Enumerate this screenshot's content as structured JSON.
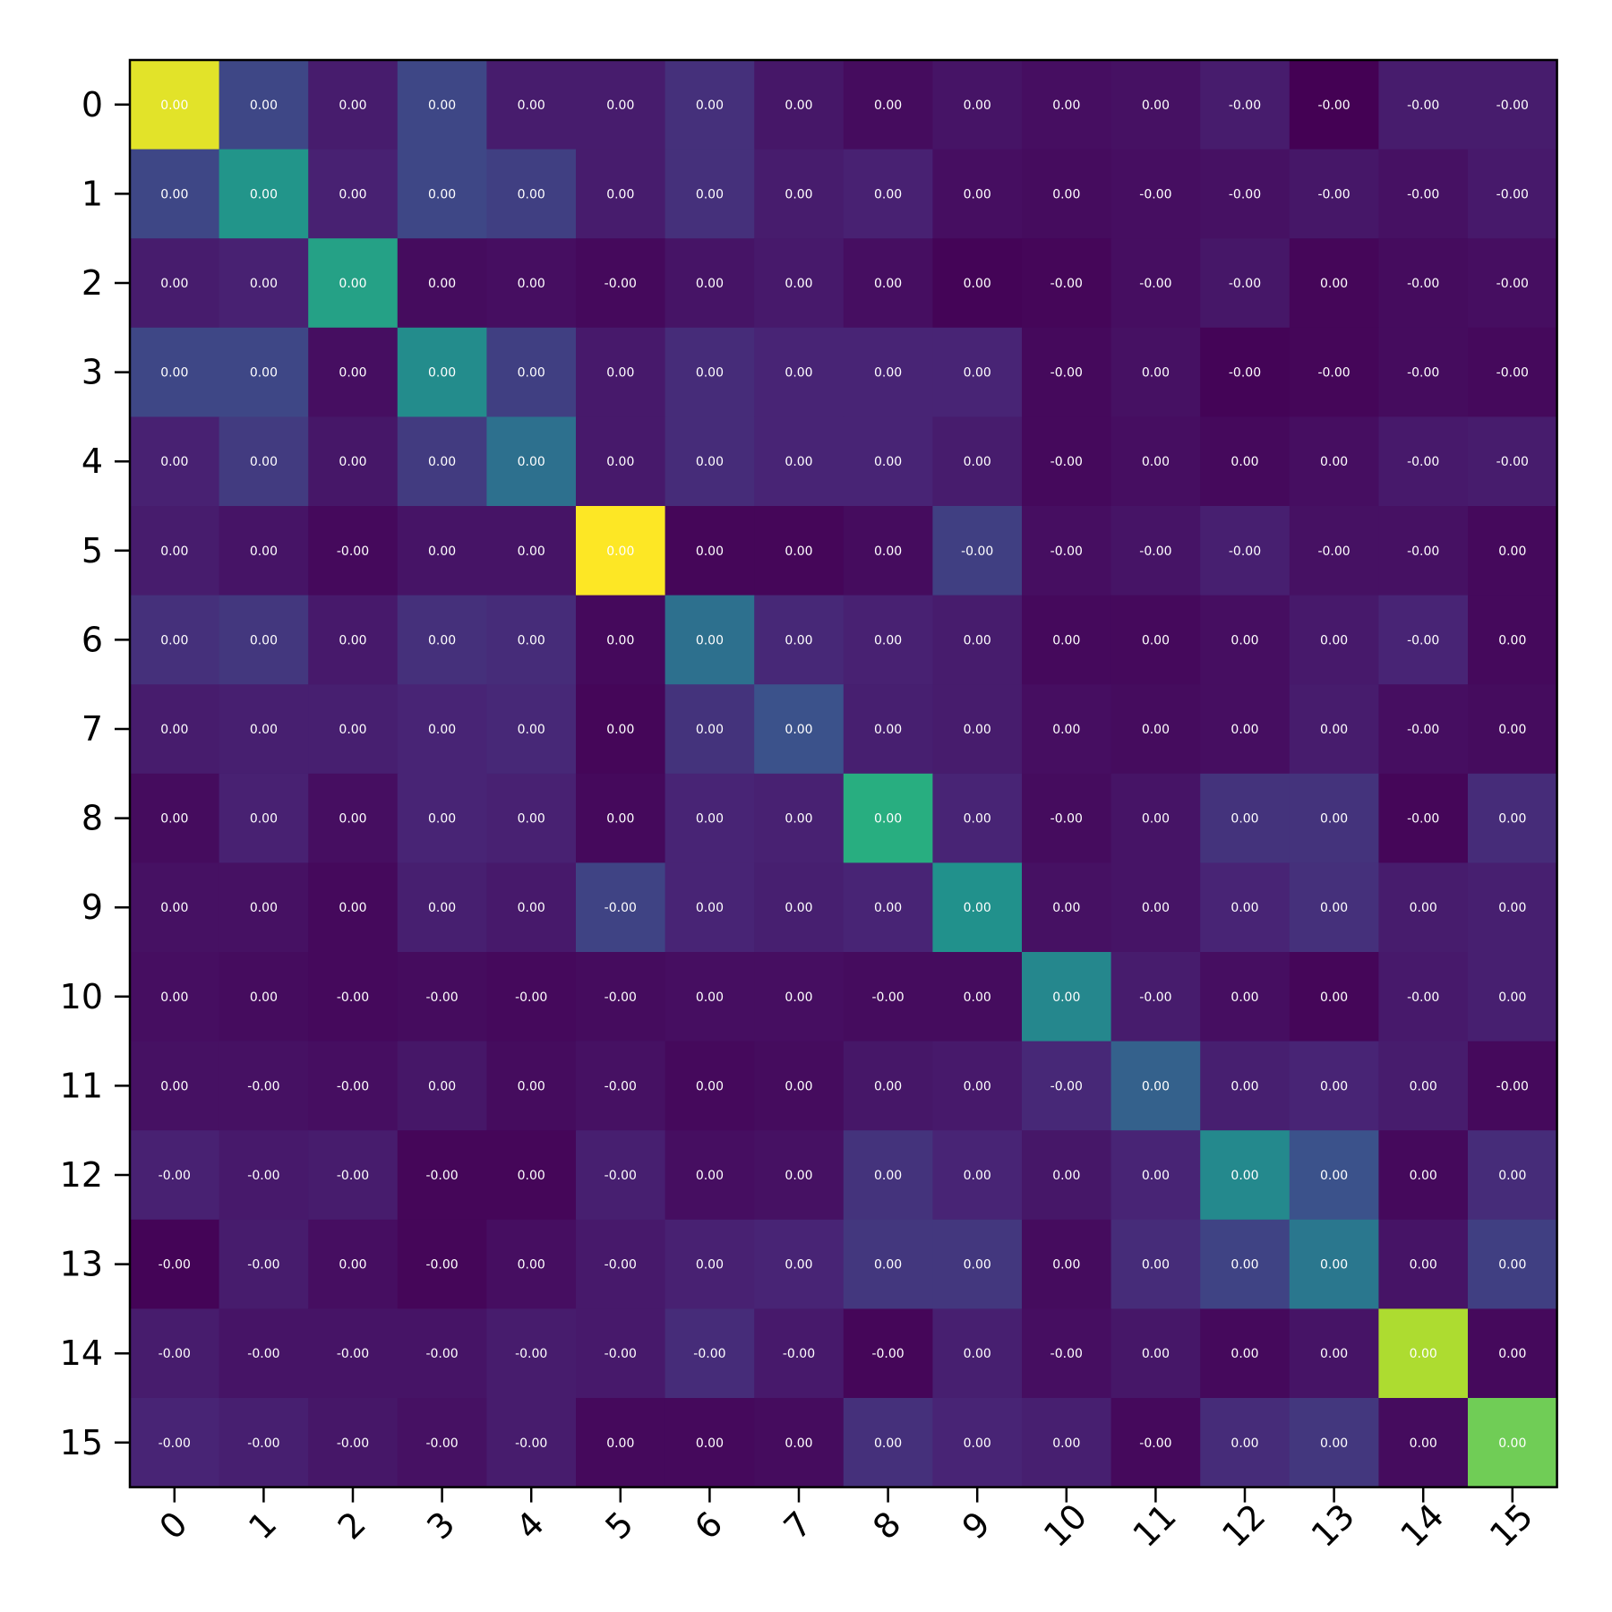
{
  "chart_data": {
    "type": "heatmap",
    "title": "",
    "xlabel": "",
    "ylabel": "",
    "x_categories": [
      "0",
      "1",
      "2",
      "3",
      "4",
      "5",
      "6",
      "7",
      "8",
      "9",
      "10",
      "11",
      "12",
      "13",
      "14",
      "15"
    ],
    "y_categories": [
      "0",
      "1",
      "2",
      "3",
      "4",
      "5",
      "6",
      "7",
      "8",
      "9",
      "10",
      "11",
      "12",
      "13",
      "14",
      "15"
    ],
    "colormap": "viridis",
    "x_tick_rotation_deg": 45,
    "colorbar": false,
    "labels": [
      [
        "0.00",
        "0.00",
        "0.00",
        "0.00",
        "0.00",
        "0.00",
        "0.00",
        "0.00",
        "0.00",
        "0.00",
        "0.00",
        "0.00",
        "-0.00",
        "-0.00",
        "-0.00",
        "-0.00"
      ],
      [
        "0.00",
        "0.00",
        "0.00",
        "0.00",
        "0.00",
        "0.00",
        "0.00",
        "0.00",
        "0.00",
        "0.00",
        "0.00",
        "-0.00",
        "-0.00",
        "-0.00",
        "-0.00",
        "-0.00"
      ],
      [
        "0.00",
        "0.00",
        "0.00",
        "0.00",
        "0.00",
        "-0.00",
        "0.00",
        "0.00",
        "0.00",
        "0.00",
        "-0.00",
        "-0.00",
        "-0.00",
        "0.00",
        "-0.00",
        "-0.00"
      ],
      [
        "0.00",
        "0.00",
        "0.00",
        "0.00",
        "0.00",
        "0.00",
        "0.00",
        "0.00",
        "0.00",
        "0.00",
        "-0.00",
        "0.00",
        "-0.00",
        "-0.00",
        "-0.00",
        "-0.00"
      ],
      [
        "0.00",
        "0.00",
        "0.00",
        "0.00",
        "0.00",
        "0.00",
        "0.00",
        "0.00",
        "0.00",
        "0.00",
        "-0.00",
        "0.00",
        "0.00",
        "0.00",
        "-0.00",
        "-0.00"
      ],
      [
        "0.00",
        "0.00",
        "-0.00",
        "0.00",
        "0.00",
        "0.00",
        "0.00",
        "0.00",
        "0.00",
        "-0.00",
        "-0.00",
        "-0.00",
        "-0.00",
        "-0.00",
        "-0.00",
        "0.00"
      ],
      [
        "0.00",
        "0.00",
        "0.00",
        "0.00",
        "0.00",
        "0.00",
        "0.00",
        "0.00",
        "0.00",
        "0.00",
        "0.00",
        "0.00",
        "0.00",
        "0.00",
        "-0.00",
        "0.00"
      ],
      [
        "0.00",
        "0.00",
        "0.00",
        "0.00",
        "0.00",
        "0.00",
        "0.00",
        "0.00",
        "0.00",
        "0.00",
        "0.00",
        "0.00",
        "0.00",
        "0.00",
        "-0.00",
        "0.00"
      ],
      [
        "0.00",
        "0.00",
        "0.00",
        "0.00",
        "0.00",
        "0.00",
        "0.00",
        "0.00",
        "0.00",
        "0.00",
        "-0.00",
        "0.00",
        "0.00",
        "0.00",
        "-0.00",
        "0.00"
      ],
      [
        "0.00",
        "0.00",
        "0.00",
        "0.00",
        "0.00",
        "-0.00",
        "0.00",
        "0.00",
        "0.00",
        "0.00",
        "0.00",
        "0.00",
        "0.00",
        "0.00",
        "0.00",
        "0.00"
      ],
      [
        "0.00",
        "0.00",
        "-0.00",
        "-0.00",
        "-0.00",
        "-0.00",
        "0.00",
        "0.00",
        "-0.00",
        "0.00",
        "0.00",
        "-0.00",
        "0.00",
        "0.00",
        "-0.00",
        "0.00"
      ],
      [
        "0.00",
        "-0.00",
        "-0.00",
        "0.00",
        "0.00",
        "-0.00",
        "0.00",
        "0.00",
        "0.00",
        "0.00",
        "-0.00",
        "0.00",
        "0.00",
        "0.00",
        "0.00",
        "-0.00"
      ],
      [
        "-0.00",
        "-0.00",
        "-0.00",
        "-0.00",
        "0.00",
        "-0.00",
        "0.00",
        "0.00",
        "0.00",
        "0.00",
        "0.00",
        "0.00",
        "0.00",
        "0.00",
        "0.00",
        "0.00"
      ],
      [
        "-0.00",
        "-0.00",
        "0.00",
        "-0.00",
        "0.00",
        "-0.00",
        "0.00",
        "0.00",
        "0.00",
        "0.00",
        "0.00",
        "0.00",
        "0.00",
        "0.00",
        "0.00",
        "0.00"
      ],
      [
        "-0.00",
        "-0.00",
        "-0.00",
        "-0.00",
        "-0.00",
        "-0.00",
        "-0.00",
        "-0.00",
        "-0.00",
        "0.00",
        "-0.00",
        "0.00",
        "0.00",
        "0.00",
        "0.00",
        "0.00"
      ],
      [
        "-0.00",
        "-0.00",
        "-0.00",
        "-0.00",
        "-0.00",
        "0.00",
        "0.00",
        "0.00",
        "0.00",
        "0.00",
        "0.00",
        "-0.00",
        "0.00",
        "0.00",
        "0.00",
        "0.00"
      ]
    ],
    "intensity": [
      [
        0.96,
        0.22,
        0.1,
        0.22,
        0.1,
        0.1,
        0.16,
        0.08,
        0.04,
        0.07,
        0.05,
        0.06,
        0.1,
        0.0,
        0.1,
        0.1
      ],
      [
        0.22,
        0.52,
        0.12,
        0.22,
        0.2,
        0.1,
        0.16,
        0.1,
        0.12,
        0.05,
        0.04,
        0.05,
        0.06,
        0.08,
        0.06,
        0.09
      ],
      [
        0.1,
        0.12,
        0.57,
        0.04,
        0.05,
        0.03,
        0.07,
        0.09,
        0.05,
        0.01,
        0.02,
        0.05,
        0.08,
        0.02,
        0.04,
        0.05
      ],
      [
        0.22,
        0.22,
        0.05,
        0.48,
        0.2,
        0.09,
        0.15,
        0.13,
        0.13,
        0.13,
        0.03,
        0.06,
        0.01,
        0.02,
        0.04,
        0.03
      ],
      [
        0.12,
        0.19,
        0.08,
        0.19,
        0.37,
        0.09,
        0.15,
        0.13,
        0.13,
        0.1,
        0.03,
        0.05,
        0.03,
        0.05,
        0.09,
        0.1
      ],
      [
        0.1,
        0.07,
        0.03,
        0.07,
        0.07,
        1.0,
        0.02,
        0.02,
        0.04,
        0.2,
        0.05,
        0.07,
        0.11,
        0.06,
        0.06,
        0.03
      ],
      [
        0.16,
        0.18,
        0.09,
        0.16,
        0.15,
        0.03,
        0.37,
        0.14,
        0.12,
        0.1,
        0.03,
        0.03,
        0.05,
        0.09,
        0.13,
        0.03
      ],
      [
        0.1,
        0.11,
        0.11,
        0.13,
        0.14,
        0.02,
        0.17,
        0.25,
        0.11,
        0.1,
        0.05,
        0.04,
        0.05,
        0.1,
        0.05,
        0.04
      ],
      [
        0.04,
        0.12,
        0.05,
        0.13,
        0.12,
        0.03,
        0.13,
        0.12,
        0.63,
        0.13,
        0.04,
        0.07,
        0.17,
        0.17,
        0.02,
        0.15
      ],
      [
        0.06,
        0.06,
        0.03,
        0.11,
        0.09,
        0.21,
        0.13,
        0.11,
        0.13,
        0.5,
        0.06,
        0.07,
        0.13,
        0.16,
        0.1,
        0.11
      ],
      [
        0.05,
        0.04,
        0.03,
        0.04,
        0.03,
        0.04,
        0.05,
        0.05,
        0.04,
        0.04,
        0.46,
        0.1,
        0.05,
        0.02,
        0.09,
        0.11
      ],
      [
        0.06,
        0.06,
        0.05,
        0.08,
        0.04,
        0.06,
        0.03,
        0.04,
        0.08,
        0.09,
        0.14,
        0.31,
        0.11,
        0.13,
        0.1,
        0.03
      ],
      [
        0.12,
        0.09,
        0.1,
        0.02,
        0.02,
        0.11,
        0.05,
        0.06,
        0.17,
        0.13,
        0.08,
        0.13,
        0.47,
        0.25,
        0.03,
        0.15
      ],
      [
        0.01,
        0.1,
        0.05,
        0.02,
        0.05,
        0.09,
        0.12,
        0.13,
        0.18,
        0.18,
        0.04,
        0.15,
        0.21,
        0.4,
        0.07,
        0.2
      ],
      [
        0.1,
        0.07,
        0.07,
        0.07,
        0.1,
        0.09,
        0.15,
        0.09,
        0.02,
        0.11,
        0.05,
        0.08,
        0.03,
        0.07,
        0.88,
        0.03
      ],
      [
        0.13,
        0.11,
        0.08,
        0.06,
        0.1,
        0.03,
        0.03,
        0.04,
        0.16,
        0.13,
        0.11,
        0.03,
        0.15,
        0.18,
        0.04,
        0.78
      ]
    ]
  }
}
